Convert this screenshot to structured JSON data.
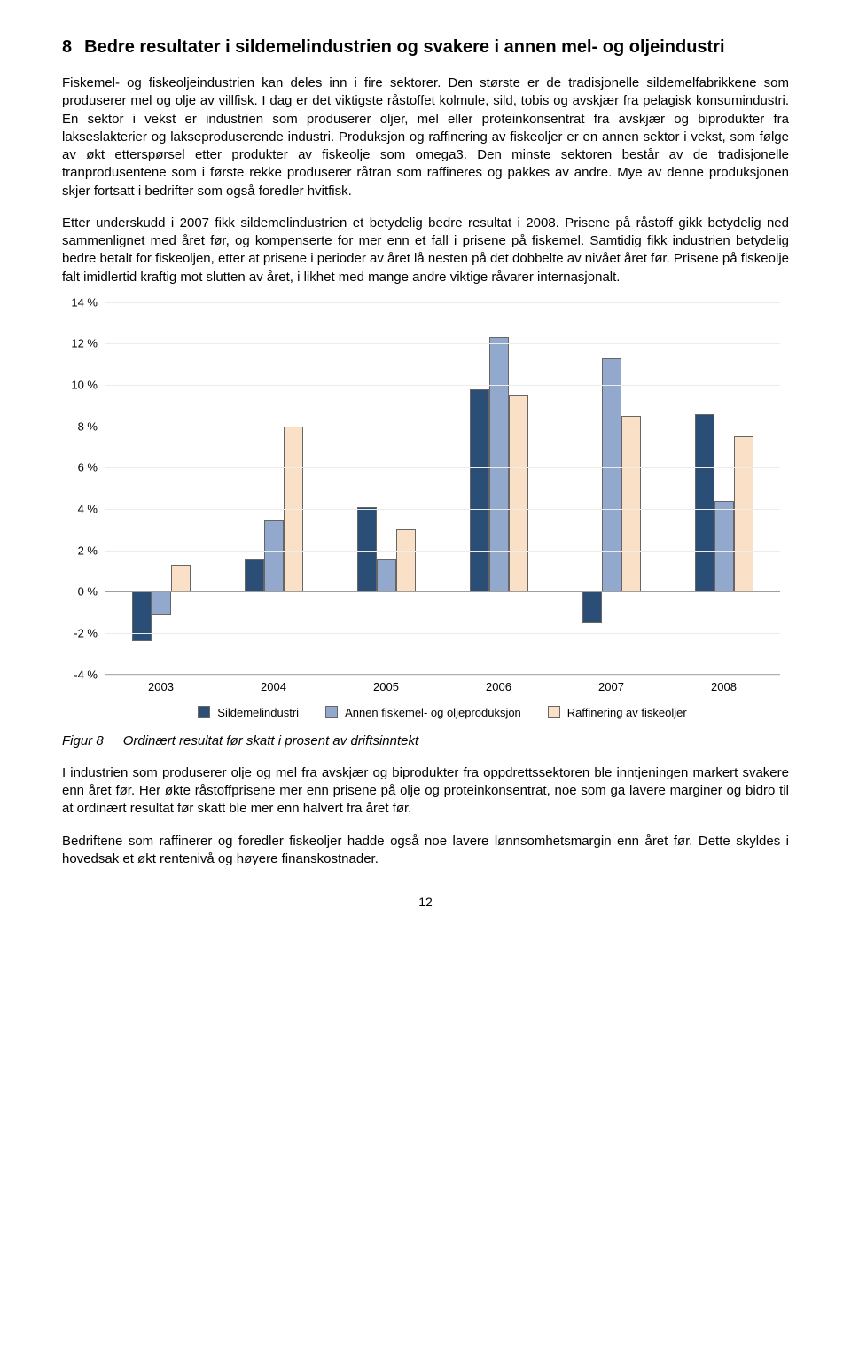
{
  "heading": {
    "number": "8",
    "text": "Bedre resultater i sildemelindustrien og svakere i annen mel- og oljeindustri"
  },
  "paragraphs": {
    "p1": "Fiskemel- og fiskeoljeindustrien kan deles inn i fire sektorer. Den største er de tradisjonelle sildemelfabrikkene som produserer mel og olje av villfisk. I dag er det viktigste råstoffet kolmule, sild, tobis og avskjær fra pelagisk konsumindustri. En sektor i vekst er industrien som produserer oljer, mel eller proteinkonsentrat fra avskjær og biprodukter fra lakseslakterier og lakseproduserende industri. Produksjon og raffinering av fiskeoljer er en annen sektor i vekst, som følge av økt etterspørsel etter produkter av fiskeolje som omega3. Den minste sektoren består av de tradisjonelle tranprodusentene som i første rekke produserer råtran som raffineres og pakkes av andre. Mye av denne produksjonen skjer fortsatt i bedrifter som også foredler hvitfisk.",
    "p2": "Etter underskudd i 2007 fikk sildemelindustrien et betydelig bedre resultat i 2008. Prisene på råstoff gikk betydelig ned sammenlignet med året før, og kompenserte for mer enn et fall i prisene på fiskemel. Samtidig fikk industrien betydelig bedre betalt for fiskeoljen, etter at prisene i perioder av året lå nesten på det dobbelte av nivået året før. Prisene på fiskeolje falt imidlertid kraftig mot slutten av året, i likhet med mange andre viktige råvarer internasjonalt.",
    "p3": "I industrien som produserer olje og mel fra avskjær og biprodukter fra oppdrettssektoren ble inntjeningen markert svakere enn året før. Her økte råstoffprisene mer enn prisene på olje og proteinkonsentrat, noe som ga lavere marginer og bidro til at ordinært resultat før skatt ble mer enn halvert fra året før.",
    "p4": "Bedriftene som raffinerer og foredler fiskeoljer hadde også noe lavere lønnsomhetsmargin enn året før. Dette skyldes i hovedsak et økt rentenivå og høyere finanskostnader."
  },
  "chart": {
    "type": "bar",
    "categories": [
      "2003",
      "2004",
      "2005",
      "2006",
      "2007",
      "2008"
    ],
    "series": [
      {
        "name": "Sildemelindustri",
        "color": "#2b4e77",
        "values": [
          -2.4,
          1.6,
          4.1,
          9.8,
          -1.5,
          8.6
        ]
      },
      {
        "name": "Annen fiskemel- og oljeproduksjon",
        "color": "#92a8cc",
        "values": [
          -1.1,
          3.5,
          1.6,
          12.3,
          11.3,
          4.4
        ]
      },
      {
        "name": "Raffinering av fiskeoljer",
        "color": "#fbe0c8",
        "values": [
          1.3,
          8.0,
          3.0,
          9.5,
          8.5,
          7.5
        ]
      }
    ],
    "ylim": [
      -4,
      14
    ],
    "ytick_step": 2,
    "y_suffix": " %",
    "bar_border": "#666666",
    "grid_color": "#ececec",
    "zero_color": "#9e9e9e",
    "background": "#ffffff",
    "label_fontsize": 13
  },
  "legend_labels": [
    "Sildemelindustri",
    "Annen fiskemel- og oljeproduksjon",
    "Raffinering av fiskeoljer"
  ],
  "figure": {
    "label": "Figur 8",
    "caption": "Ordinært resultat før skatt i prosent av driftsinntekt"
  },
  "page_number": "12"
}
